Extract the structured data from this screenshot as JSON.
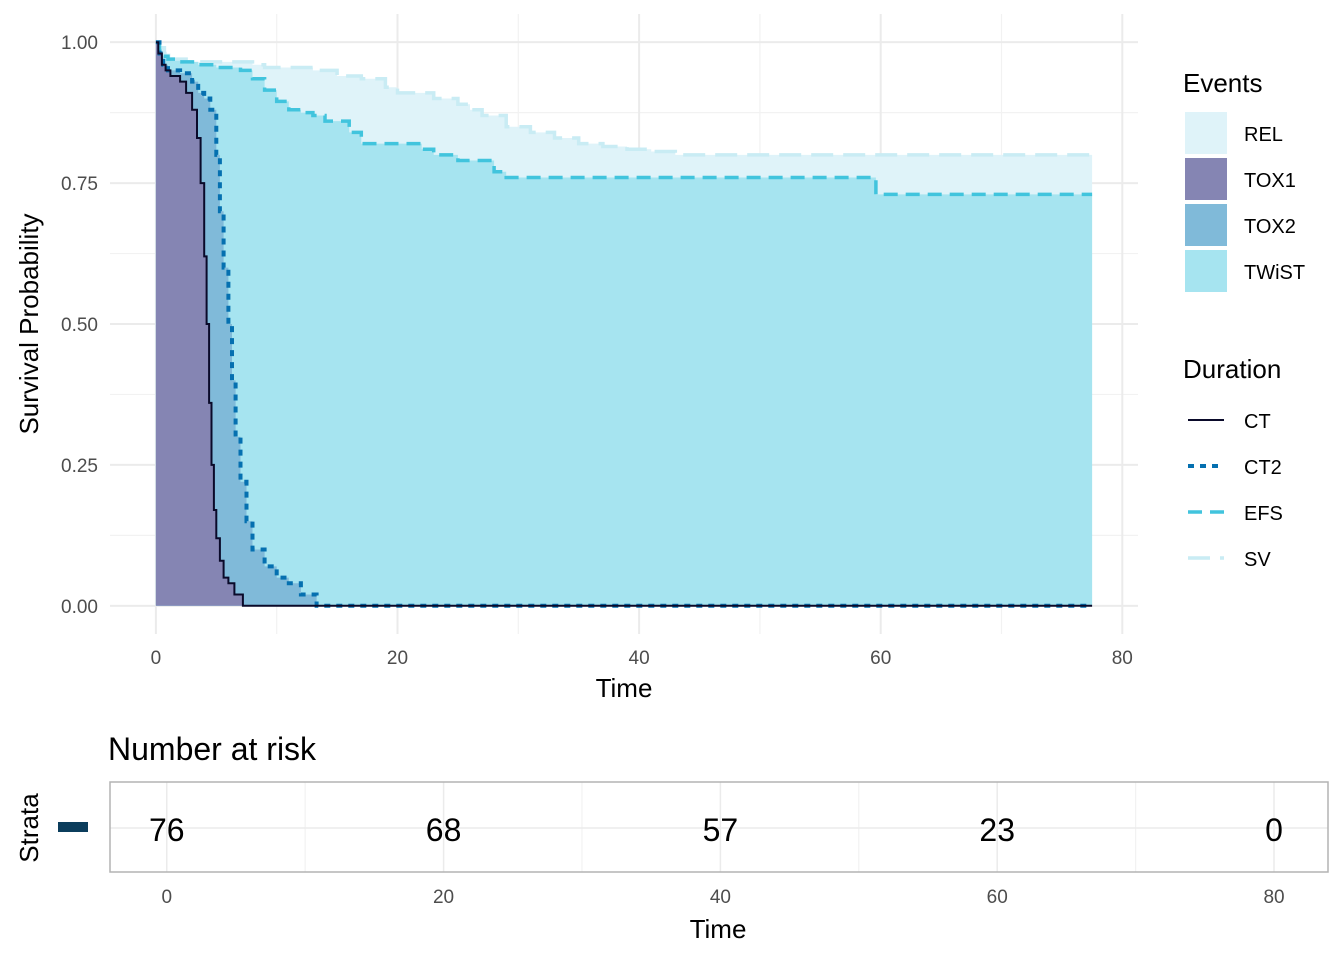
{
  "chart_data": [
    {
      "type": "area",
      "subtype": "kaplan-meier-survival",
      "xlabel": "Time",
      "ylabel": "Survival Probability",
      "xlim": [
        0,
        80
      ],
      "ylim": [
        0,
        1.0
      ],
      "x_ticks": [
        0,
        20,
        40,
        60,
        80
      ],
      "y_ticks": [
        0.0,
        0.25,
        0.5,
        0.75,
        1.0
      ],
      "x_tick_labels": [
        "0",
        "20",
        "40",
        "60",
        "80"
      ],
      "y_tick_labels": [
        "0.00",
        "0.25",
        "0.50",
        "0.75",
        "1.00"
      ],
      "grid": true,
      "legend_events": {
        "title": "Events",
        "items": [
          {
            "label": "REL",
            "color": "#dff3f9"
          },
          {
            "label": "TOX1",
            "color": "#8585b3"
          },
          {
            "label": "TOX2",
            "color": "#80bad9"
          },
          {
            "label": "TWiST",
            "color": "#a6e4f0"
          }
        ]
      },
      "legend_duration": {
        "title": "Duration",
        "items": [
          {
            "label": "CT",
            "color": "#0a0a2a",
            "dash": "solid"
          },
          {
            "label": "CT2",
            "color": "#0570b0",
            "dash": "dotted"
          },
          {
            "label": "EFS",
            "color": "#41c4dd",
            "dash": "dashed"
          },
          {
            "label": "SV",
            "color": "#c9ecf4",
            "dash": "longdash"
          }
        ]
      },
      "series": [
        {
          "name": "SV",
          "line_color": "#c9ecf4",
          "fill_color": "#dff3f9",
          "points": [
            [
              0,
              1.0
            ],
            [
              0.3,
              0.99
            ],
            [
              0.7,
              0.98
            ],
            [
              1.2,
              0.97
            ],
            [
              2.5,
              0.965
            ],
            [
              8,
              0.96
            ],
            [
              9,
              0.955
            ],
            [
              13,
              0.95
            ],
            [
              15,
              0.94
            ],
            [
              17,
              0.935
            ],
            [
              19,
              0.92
            ],
            [
              20,
              0.91
            ],
            [
              23,
              0.9
            ],
            [
              25,
              0.89
            ],
            [
              26,
              0.88
            ],
            [
              27,
              0.87
            ],
            [
              29,
              0.85
            ],
            [
              31,
              0.84
            ],
            [
              33,
              0.83
            ],
            [
              35,
              0.82
            ],
            [
              37,
              0.815
            ],
            [
              39,
              0.81
            ],
            [
              41,
              0.806
            ],
            [
              43,
              0.8
            ],
            [
              77.5,
              0.8
            ]
          ]
        },
        {
          "name": "EFS",
          "line_color": "#41c4dd",
          "fill_color": "#a6e4f0",
          "points": [
            [
              0,
              1.0
            ],
            [
              0.3,
              0.985
            ],
            [
              0.6,
              0.975
            ],
            [
              1.0,
              0.97
            ],
            [
              2.0,
              0.965
            ],
            [
              3.5,
              0.96
            ],
            [
              5,
              0.955
            ],
            [
              7,
              0.95
            ],
            [
              8,
              0.935
            ],
            [
              9,
              0.915
            ],
            [
              10,
              0.895
            ],
            [
              11,
              0.88
            ],
            [
              12,
              0.875
            ],
            [
              13,
              0.87
            ],
            [
              14,
              0.86
            ],
            [
              16,
              0.84
            ],
            [
              17,
              0.82
            ],
            [
              19,
              0.82
            ],
            [
              22,
              0.81
            ],
            [
              23,
              0.8
            ],
            [
              25,
              0.79
            ],
            [
              28,
              0.77
            ],
            [
              29,
              0.76
            ],
            [
              59.5,
              0.76
            ],
            [
              59.6,
              0.73
            ],
            [
              77.5,
              0.73
            ]
          ]
        },
        {
          "name": "CT2",
          "line_color": "#0570b0",
          "fill_color": "#80bad9",
          "points": [
            [
              0,
              1.0
            ],
            [
              0.3,
              0.98
            ],
            [
              0.6,
              0.96
            ],
            [
              1.0,
              0.95
            ],
            [
              2.0,
              0.945
            ],
            [
              3.0,
              0.93
            ],
            [
              3.5,
              0.91
            ],
            [
              4.0,
              0.9
            ],
            [
              4.5,
              0.88
            ],
            [
              5.0,
              0.8
            ],
            [
              5.3,
              0.7
            ],
            [
              5.6,
              0.6
            ],
            [
              6.0,
              0.5
            ],
            [
              6.3,
              0.4
            ],
            [
              6.6,
              0.3
            ],
            [
              7.0,
              0.22
            ],
            [
              7.5,
              0.15
            ],
            [
              8.0,
              0.1
            ],
            [
              9.0,
              0.07
            ],
            [
              10.0,
              0.05
            ],
            [
              11.0,
              0.04
            ],
            [
              12.0,
              0.02
            ],
            [
              13.3,
              0.0
            ],
            [
              77.5,
              0.0
            ]
          ]
        },
        {
          "name": "CT",
          "line_color": "#0a0a2a",
          "fill_color": "#8585b3",
          "points": [
            [
              0,
              1.0
            ],
            [
              0.2,
              0.98
            ],
            [
              0.5,
              0.96
            ],
            [
              0.8,
              0.95
            ],
            [
              1.2,
              0.94
            ],
            [
              2.0,
              0.93
            ],
            [
              2.5,
              0.91
            ],
            [
              3.0,
              0.88
            ],
            [
              3.4,
              0.83
            ],
            [
              3.7,
              0.75
            ],
            [
              4.0,
              0.62
            ],
            [
              4.2,
              0.5
            ],
            [
              4.4,
              0.36
            ],
            [
              4.6,
              0.25
            ],
            [
              4.8,
              0.17
            ],
            [
              5.0,
              0.12
            ],
            [
              5.3,
              0.08
            ],
            [
              5.6,
              0.05
            ],
            [
              6.0,
              0.04
            ],
            [
              6.5,
              0.02
            ],
            [
              7.2,
              0.0
            ],
            [
              77.5,
              0.0
            ]
          ]
        }
      ]
    },
    {
      "type": "table",
      "title": "Number at risk",
      "ylabel": "Strata",
      "xlabel": "Time",
      "strata_color": "#0b3d5c",
      "times": [
        0,
        20,
        40,
        60,
        80
      ],
      "x_tick_labels": [
        "0",
        "20",
        "40",
        "60",
        "80"
      ],
      "values": [
        "76",
        "68",
        "57",
        "23",
        "0"
      ]
    }
  ]
}
